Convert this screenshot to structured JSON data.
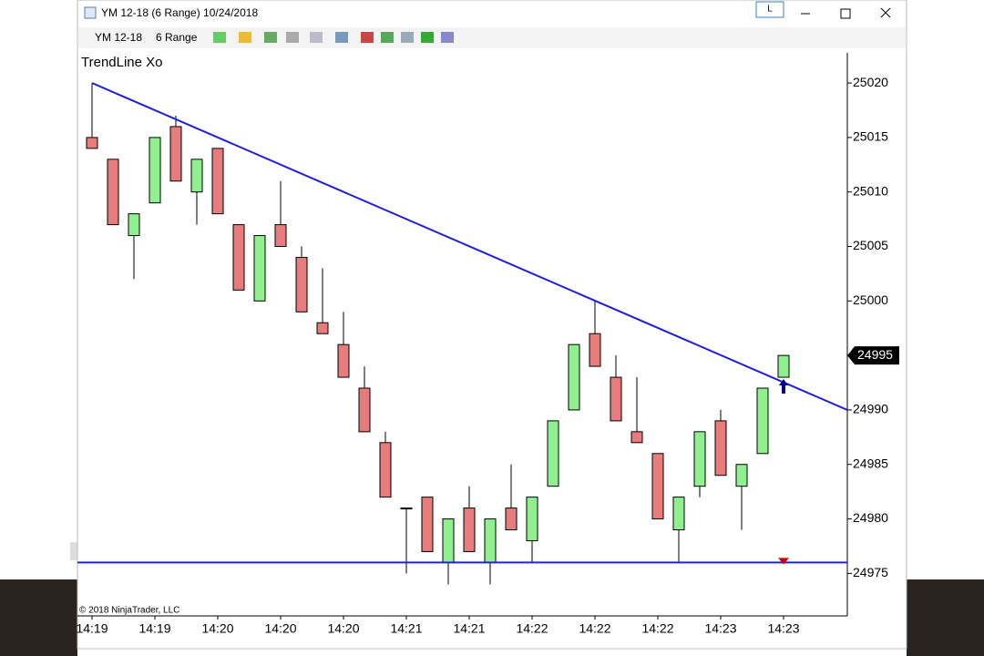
{
  "window": {
    "title": "YM 12-18 (6 Range)  10/24/2018",
    "instrument": "YM 12-18",
    "period": "6 Range",
    "button": "L"
  },
  "chart_data": {
    "type": "candlestick",
    "title": "TrendLine Xo",
    "copyright": "© 2018 NinjaTrader, LLC",
    "categories": [
      "14:19",
      null,
      null,
      "14:19",
      null,
      null,
      "14:20",
      null,
      null,
      "14:20",
      null,
      null,
      "14:20",
      null,
      null,
      "14:21",
      null,
      null,
      "14:21",
      null,
      null,
      "14:22",
      null,
      null,
      "14:22",
      null,
      null,
      "14:22",
      null,
      null,
      "14:23",
      null,
      null,
      "14:23"
    ],
    "open": [
      25015,
      25013,
      25006,
      25009,
      25016,
      25010,
      25014,
      25007,
      25000,
      25007,
      25004,
      24998,
      24996,
      24992,
      24987,
      24981,
      24982,
      24976,
      24981,
      24976,
      24981,
      24978,
      24983,
      24990,
      24997,
      24993,
      24988,
      24986,
      24979,
      24983,
      24989,
      24983,
      24986,
      24993
    ],
    "high": [
      25020,
      25013,
      25008,
      25015,
      25017,
      25013,
      25014,
      25007,
      25006,
      25011,
      25005,
      25003,
      24999,
      24994,
      24988,
      24981,
      24982,
      24980,
      24983,
      24980,
      24985,
      24982,
      24989,
      24996,
      25000,
      24995,
      24993,
      24986,
      24982,
      24988,
      24990,
      24985,
      24992,
      24995
    ],
    "low": [
      25014,
      25007,
      25002,
      25009,
      25011,
      25007,
      25008,
      25001,
      25000,
      25005,
      24999,
      24997,
      24993,
      24988,
      24982,
      24975,
      24977,
      24974,
      24977,
      24974,
      24979,
      24976,
      24983,
      24990,
      24994,
      24989,
      24987,
      24980,
      24976,
      24982,
      24984,
      24979,
      24986,
      24993
    ],
    "close": [
      25014,
      25007,
      25008,
      25015,
      25011,
      25013,
      25008,
      25001,
      25006,
      25005,
      24999,
      24997,
      24993,
      24988,
      24982,
      24981,
      24977,
      24980,
      24977,
      24980,
      24979,
      24982,
      24989,
      24996,
      24994,
      24989,
      24987,
      24980,
      24982,
      24988,
      24984,
      24985,
      24992,
      24995
    ],
    "up_color": "#90f090",
    "down_color": "#e87c7c",
    "trendline": {
      "start": 25020,
      "end": 24990,
      "color": "#2020e0"
    },
    "horizontal_line": {
      "value": 24976,
      "color": "#2020e0"
    },
    "last_price": 24995,
    "ylim": [
      24971.1,
      25022.6
    ],
    "yticks": [
      24975,
      24980,
      24985,
      24990,
      24995,
      25000,
      25005,
      25010,
      25015,
      25020
    ]
  }
}
